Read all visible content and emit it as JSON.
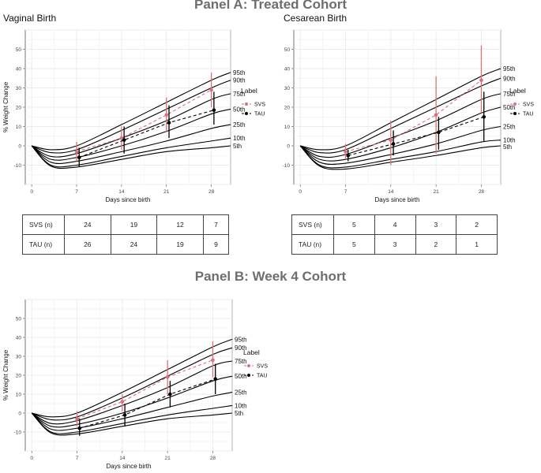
{
  "panel_a_title": "Panel A: Treated Cohort",
  "panel_b_title": "Panel B: Week 4 Cohort",
  "legend": {
    "title": "Label",
    "svs": "SVS",
    "tau": "TAU"
  },
  "colors": {
    "svs": "#d9717d",
    "tau": "#000000",
    "grid": "#ebebeb",
    "percentile": "#000000"
  },
  "percentile_labels": [
    "95th",
    "90th",
    "75th",
    "50th",
    "25th",
    "10th",
    "5th"
  ],
  "tables": [
    {
      "rows": [
        {
          "label": "SVS (n)",
          "values": [
            "24",
            "19",
            "12",
            "7"
          ]
        },
        {
          "label": "TAU (n)",
          "values": [
            "26",
            "24",
            "19",
            "9"
          ]
        }
      ]
    },
    {
      "rows": [
        {
          "label": "SVS (n)",
          "values": [
            "5",
            "4",
            "3",
            "2"
          ]
        },
        {
          "label": "TAU (n)",
          "values": [
            "5",
            "3",
            "2",
            "1"
          ]
        }
      ]
    }
  ],
  "chart_data": [
    {
      "type": "line",
      "title": "Vaginal Birth",
      "xlabel": "Days since birth",
      "ylabel": "% Weight Change",
      "xlim": [
        -1,
        31
      ],
      "ylim": [
        -20,
        60
      ],
      "xticks": [
        0,
        7,
        14,
        21,
        28
      ],
      "yticks": [
        -10,
        0,
        10,
        20,
        30,
        40,
        50
      ],
      "grid": true,
      "legend_position": "right",
      "percentile_curves": [
        {
          "label": "95th",
          "x": [
            0,
            3,
            7,
            14,
            21,
            28,
            31
          ],
          "y": [
            0,
            -2,
            0,
            11,
            22.5,
            34,
            38
          ]
        },
        {
          "label": "90th",
          "x": [
            0,
            3,
            7,
            14,
            21,
            28,
            31
          ],
          "y": [
            0,
            -3.5,
            -2,
            8,
            19,
            30,
            34
          ]
        },
        {
          "label": "75th",
          "x": [
            0,
            3,
            7,
            14,
            21,
            28,
            31
          ],
          "y": [
            0,
            -5.5,
            -4,
            4,
            13,
            24,
            27
          ]
        },
        {
          "label": "50th",
          "x": [
            0,
            3,
            7,
            14,
            21,
            28,
            31
          ],
          "y": [
            0,
            -7,
            -6,
            0,
            7.5,
            16.5,
            19
          ]
        },
        {
          "label": "25th",
          "x": [
            0,
            3,
            7,
            14,
            21,
            28,
            31
          ],
          "y": [
            0,
            -8.5,
            -8,
            -3,
            2.5,
            9,
            11
          ]
        },
        {
          "label": "10th",
          "x": [
            0,
            3,
            7,
            14,
            21,
            28,
            31
          ],
          "y": [
            0,
            -10,
            -10,
            -5.5,
            -1,
            2.5,
            4
          ]
        },
        {
          "label": "5th",
          "x": [
            0,
            3,
            7,
            14,
            21,
            28,
            31
          ],
          "y": [
            0,
            -10.5,
            -11,
            -7,
            -3,
            -1,
            0
          ]
        }
      ],
      "series": [
        {
          "name": "SVS",
          "x": [
            7,
            14,
            21,
            28
          ],
          "y": [
            -3,
            4,
            16,
            29
          ],
          "ymin": [
            -8,
            -2,
            7,
            20
          ],
          "ymax": [
            2,
            10,
            25,
            38
          ]
        },
        {
          "name": "TAU",
          "x": [
            7,
            14,
            21,
            28
          ],
          "y": [
            -6,
            3,
            12,
            18.5
          ],
          "ymin": [
            -11,
            -4,
            4,
            11
          ],
          "ymax": [
            -1,
            10,
            21,
            28
          ]
        }
      ]
    },
    {
      "type": "line",
      "title": "Cesarean Birth",
      "xlabel": "Days since birth",
      "ylabel": "",
      "xlim": [
        -1,
        31
      ],
      "ylim": [
        -20,
        60
      ],
      "xticks": [
        0,
        7,
        14,
        21,
        28
      ],
      "yticks": [
        -10,
        0,
        10,
        20,
        30,
        40,
        50
      ],
      "grid": true,
      "legend_position": "right",
      "percentile_curves": [
        {
          "label": "95th",
          "x": [
            0,
            3,
            7,
            14,
            21,
            28,
            31
          ],
          "y": [
            0,
            -2,
            0,
            12,
            24,
            36,
            40
          ]
        },
        {
          "label": "90th",
          "x": [
            0,
            3,
            7,
            14,
            21,
            28,
            31
          ],
          "y": [
            0,
            -3.5,
            -2,
            9,
            20,
            31,
            35
          ]
        },
        {
          "label": "75th",
          "x": [
            0,
            3,
            7,
            14,
            21,
            28,
            31
          ],
          "y": [
            0,
            -5.5,
            -4.5,
            4,
            13,
            24,
            27
          ]
        },
        {
          "label": "50th",
          "x": [
            0,
            3,
            7,
            14,
            21,
            28,
            31
          ],
          "y": [
            0,
            -7,
            -7,
            -1,
            7,
            17,
            20
          ]
        },
        {
          "label": "25th",
          "x": [
            0,
            3,
            7,
            14,
            21,
            28,
            31
          ],
          "y": [
            0,
            -8.5,
            -9,
            -4.5,
            1,
            8,
            10
          ]
        },
        {
          "label": "10th",
          "x": [
            0,
            3,
            7,
            14,
            21,
            28,
            31
          ],
          "y": [
            0,
            -10,
            -11,
            -7,
            -3,
            2,
            3
          ]
        },
        {
          "label": "5th",
          "x": [
            0,
            3,
            7,
            14,
            21,
            28,
            31
          ],
          "y": [
            0,
            -10.5,
            -12,
            -8.5,
            -5,
            -1,
            0
          ]
        }
      ],
      "series": [
        {
          "name": "SVS",
          "x": [
            7,
            14,
            21,
            28
          ],
          "y": [
            -3,
            3,
            16,
            34
          ],
          "ymin": [
            -7,
            -10,
            -4,
            17
          ],
          "ymax": [
            1,
            13,
            36,
            52
          ]
        },
        {
          "name": "TAU",
          "x": [
            7,
            14,
            21,
            28
          ],
          "y": [
            -5,
            1,
            7,
            15
          ],
          "ymin": [
            -8,
            -5,
            -2,
            2
          ],
          "ymax": [
            -2,
            8,
            15,
            28
          ]
        }
      ]
    },
    {
      "type": "line",
      "title": "",
      "xlabel": "Days since birth",
      "ylabel": "% Weight Change",
      "xlim": [
        -1,
        31
      ],
      "ylim": [
        -20,
        60
      ],
      "xticks": [
        0,
        7,
        14,
        21,
        28
      ],
      "yticks": [
        -10,
        0,
        10,
        20,
        30,
        40,
        50
      ],
      "grid": true,
      "legend_position": "right",
      "percentile_curves": [
        {
          "label": "95th",
          "x": [
            0,
            3,
            7,
            14,
            21,
            28,
            31
          ],
          "y": [
            0,
            -2,
            0,
            11,
            23,
            35,
            39
          ]
        },
        {
          "label": "90th",
          "x": [
            0,
            3,
            7,
            14,
            21,
            28,
            31
          ],
          "y": [
            0,
            -3.5,
            -2,
            8,
            19.5,
            31,
            34.5
          ]
        },
        {
          "label": "75th",
          "x": [
            0,
            3,
            7,
            14,
            21,
            28,
            31
          ],
          "y": [
            0,
            -5.5,
            -4,
            4,
            13.5,
            25,
            27.5
          ]
        },
        {
          "label": "50th",
          "x": [
            0,
            3,
            7,
            14,
            21,
            28,
            31
          ],
          "y": [
            0,
            -7,
            -6,
            0,
            8,
            17,
            19.5
          ]
        },
        {
          "label": "25th",
          "x": [
            0,
            3,
            7,
            14,
            21,
            28,
            31
          ],
          "y": [
            0,
            -8.5,
            -8,
            -3,
            3,
            9,
            11
          ]
        },
        {
          "label": "10th",
          "x": [
            0,
            3,
            7,
            14,
            21,
            28,
            31
          ],
          "y": [
            0,
            -10,
            -10,
            -5.5,
            -1,
            2.5,
            4
          ]
        },
        {
          "label": "5th",
          "x": [
            0,
            3,
            7,
            14,
            21,
            28,
            31
          ],
          "y": [
            0,
            -10.5,
            -11,
            -7,
            -3,
            -1,
            0
          ]
        }
      ],
      "series": [
        {
          "name": "SVS",
          "x": [
            7,
            14,
            21,
            28
          ],
          "y": [
            -3,
            6,
            19,
            28
          ],
          "ymin": [
            -7,
            1,
            10,
            19
          ],
          "ymax": [
            1,
            10,
            28,
            38
          ]
        },
        {
          "name": "TAU",
          "x": [
            7,
            14,
            21,
            28
          ],
          "y": [
            -8,
            -1,
            10,
            18
          ],
          "ymin": [
            -12,
            -7,
            3,
            10
          ],
          "ymax": [
            -3,
            5,
            17,
            26
          ]
        }
      ]
    }
  ]
}
